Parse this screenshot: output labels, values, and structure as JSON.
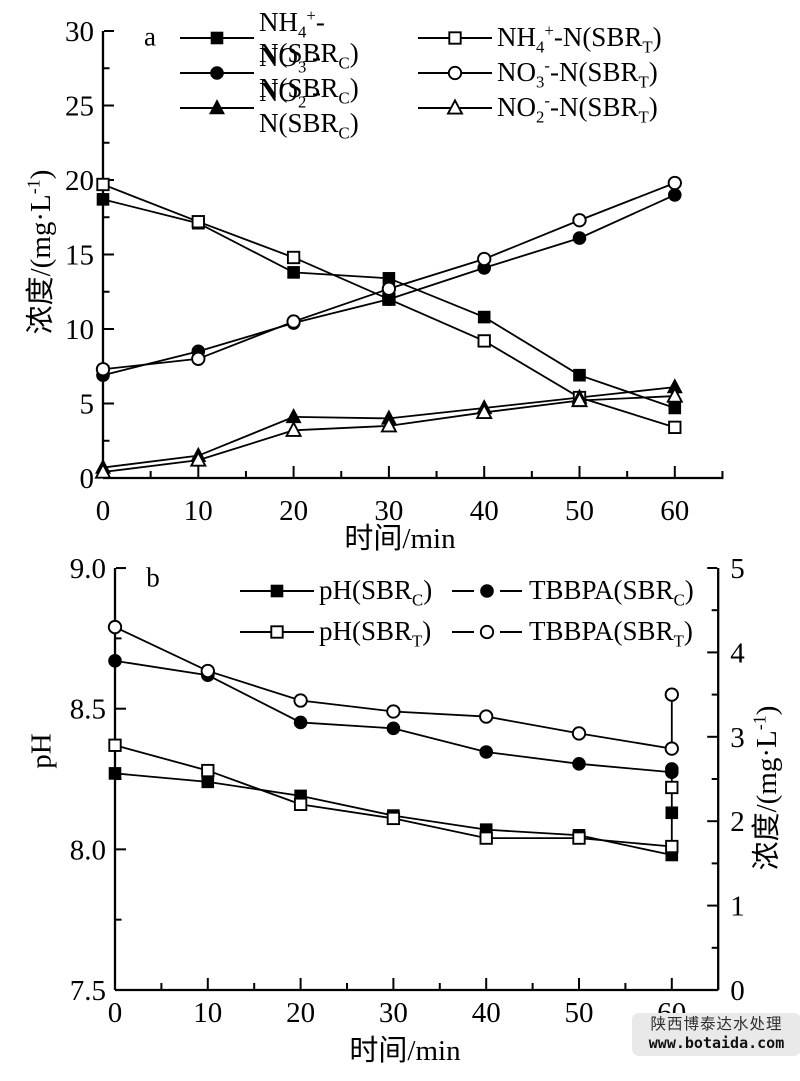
{
  "colors": {
    "line": "#000000",
    "background": "#ffffff",
    "watermark_bg": "#e9e9e9",
    "watermark_text": "#2e2e2e"
  },
  "watermark": {
    "line1": "陕西博泰达水处理",
    "line2": "www.botaida.com"
  },
  "chart_data": [
    {
      "panel": "a",
      "type": "line",
      "x_axis": {
        "label": "时间/min",
        "min": 0,
        "max": 65,
        "major": [
          0,
          10,
          20,
          30,
          40,
          50,
          60
        ],
        "major_labels": [
          "0",
          "10",
          "20",
          "30",
          "40",
          "50",
          "60"
        ],
        "minor_step": 5
      },
      "y_axis": {
        "label_html": "浓度/(mg·L<sup>-1</sup>)",
        "min": 0,
        "max": 30,
        "major": [
          0,
          5,
          10,
          15,
          20,
          25,
          30
        ],
        "major_labels": [
          "0",
          "5",
          "10",
          "15",
          "20",
          "25",
          "30"
        ],
        "minor_step": 2.5
      },
      "x": [
        0,
        10,
        20,
        30,
        40,
        50,
        60
      ],
      "series": [
        {
          "name_html": "NH<sub>4</sub><sup>+</sup>-N(SBR<sub>C</sub>)",
          "marker": "square",
          "fill": "filled",
          "legend_line": "solid",
          "values": [
            18.7,
            17.1,
            13.8,
            13.4,
            10.8,
            6.9,
            4.7
          ]
        },
        {
          "name_html": "NH<sub>4</sub><sup>+</sup>-N(SBR<sub>T</sub>)",
          "marker": "square",
          "fill": "open",
          "legend_line": "solid",
          "values": [
            19.7,
            17.2,
            14.8,
            12.0,
            9.2,
            5.4,
            3.4
          ]
        },
        {
          "name_html": "NO<sub>3</sub><sup>-</sup>-N(SBR<sub>C</sub>)",
          "marker": "circle",
          "fill": "filled",
          "legend_line": "solid",
          "values": [
            6.9,
            8.5,
            10.4,
            12.0,
            14.1,
            16.1,
            19.0
          ]
        },
        {
          "name_html": "NO<sub>3</sub><sup>-</sup>-N(SBR<sub>T</sub>)",
          "marker": "circle",
          "fill": "open",
          "legend_line": "solid",
          "values": [
            7.3,
            8.0,
            10.5,
            12.7,
            14.7,
            17.3,
            19.8
          ]
        },
        {
          "name_html": "NO<sub>2</sub><sup>-</sup>-N(SBR<sub>C</sub>)",
          "marker": "triangle",
          "fill": "filled",
          "legend_line": "solid",
          "values": [
            0.7,
            1.5,
            4.1,
            4.0,
            4.7,
            5.4,
            6.1
          ]
        },
        {
          "name_html": "NO<sub>2</sub><sup>-</sup>-N(SBR<sub>T</sub>)",
          "marker": "triangle",
          "fill": "open",
          "legend_line": "solid",
          "values": [
            0.4,
            1.2,
            3.2,
            3.5,
            4.4,
            5.2,
            5.5
          ]
        }
      ],
      "legend_rows": [
        [
          0,
          1
        ],
        [
          2,
          3
        ],
        [
          4,
          5
        ]
      ]
    },
    {
      "panel": "b",
      "type": "line",
      "x_axis": {
        "label": "时间/min",
        "min": 0,
        "max": 65,
        "major": [
          0,
          10,
          20,
          30,
          40,
          50,
          60
        ],
        "major_labels": [
          "0",
          "10",
          "20",
          "30",
          "40",
          "50",
          "60"
        ],
        "minor_step": 5
      },
      "y_left": {
        "label": "pH",
        "min": 7.5,
        "max": 9.0,
        "major": [
          7.5,
          8.0,
          8.5,
          9.0
        ],
        "major_labels": [
          "7.5",
          "8.0",
          "8.5",
          "9.0"
        ],
        "minor_step": 0.25
      },
      "y_right": {
        "label_html": "浓度/(mg·L<sup>-1</sup>)",
        "min": 0,
        "max": 5,
        "major": [
          0,
          1,
          2,
          3,
          4,
          5
        ],
        "major_labels": [
          "0",
          "1",
          "2",
          "3",
          "4",
          "5"
        ],
        "minor_step": 0.5
      },
      "x": [
        0,
        10,
        20,
        30,
        40,
        50,
        60
      ],
      "series": [
        {
          "name_html": "pH(SBR<sub>C</sub>)",
          "axis": "left",
          "marker": "square",
          "fill": "filled",
          "legend_line": "solid",
          "values": [
            8.27,
            8.24,
            8.19,
            8.12,
            8.07,
            8.05,
            7.98
          ]
        },
        {
          "name_html": "pH(SBR<sub>T</sub>)",
          "axis": "left",
          "marker": "square",
          "fill": "open",
          "legend_line": "solid",
          "values": [
            8.37,
            8.28,
            8.16,
            8.11,
            8.04,
            8.04,
            8.01
          ]
        },
        {
          "name_html": "TBBPA(SBR<sub>C</sub>)",
          "axis": "right",
          "marker": "circle",
          "fill": "filled",
          "legend_line": "dashed",
          "values": [
            3.9,
            3.73,
            3.17,
            3.1,
            2.82,
            2.68,
            2.58
          ]
        },
        {
          "name_html": "TBBPA(SBR<sub>T</sub>)",
          "axis": "right",
          "marker": "circle",
          "fill": "open",
          "legend_line": "dashed",
          "values": [
            4.3,
            3.78,
            3.43,
            3.3,
            3.24,
            3.04,
            2.86
          ]
        }
      ],
      "legend_rows": [
        [
          0,
          2
        ],
        [
          1,
          3
        ]
      ],
      "extra_points_at_60": [
        {
          "series": "TBBPA(SBRT)",
          "axis": "right",
          "marker": "circle",
          "fill": "open",
          "value": 3.5
        },
        {
          "series": "TBBPA(SBRC)",
          "axis": "right",
          "marker": "circle",
          "fill": "filled",
          "value": 2.62
        },
        {
          "series": "pH(SBRT)",
          "axis": "left",
          "marker": "square",
          "fill": "open",
          "value": 8.22
        },
        {
          "series": "pH(SBRC)",
          "axis": "left",
          "marker": "square",
          "fill": "filled",
          "value": 8.13
        }
      ],
      "connectors_at_60": [
        {
          "from_axis": "right",
          "from": 3.5,
          "to_axis": "right",
          "to": 2.86
        },
        {
          "from_axis": "right",
          "from": 2.58,
          "to_axis": "left",
          "to": 7.98
        }
      ]
    }
  ]
}
